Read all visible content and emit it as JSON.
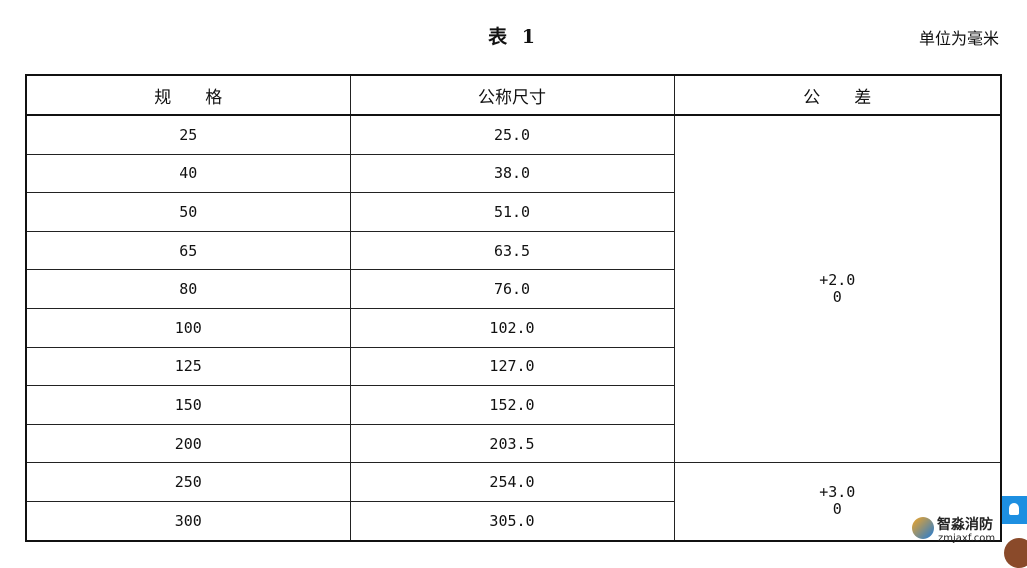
{
  "title": "表 1",
  "unit": "单位为毫米",
  "headers": [
    "规　　格",
    "公称尺寸",
    "公　　差"
  ],
  "rows": [
    {
      "spec": "25",
      "size": "25.0"
    },
    {
      "spec": "40",
      "size": "38.0"
    },
    {
      "spec": "50",
      "size": "51.0"
    },
    {
      "spec": "65",
      "size": "63.5"
    },
    {
      "spec": "80",
      "size": "76.0"
    },
    {
      "spec": "100",
      "size": "102.0"
    },
    {
      "spec": "125",
      "size": "127.0"
    },
    {
      "spec": "150",
      "size": "152.0"
    },
    {
      "spec": "200",
      "size": "203.5"
    },
    {
      "spec": "250",
      "size": "254.0"
    },
    {
      "spec": "300",
      "size": "305.0"
    }
  ],
  "tolerances": [
    {
      "upper": "+2.0",
      "lower": "0"
    },
    {
      "upper": "+3.0",
      "lower": "0"
    }
  ],
  "watermark": {
    "name": "智淼消防",
    "url": "zmjaxf.com"
  }
}
